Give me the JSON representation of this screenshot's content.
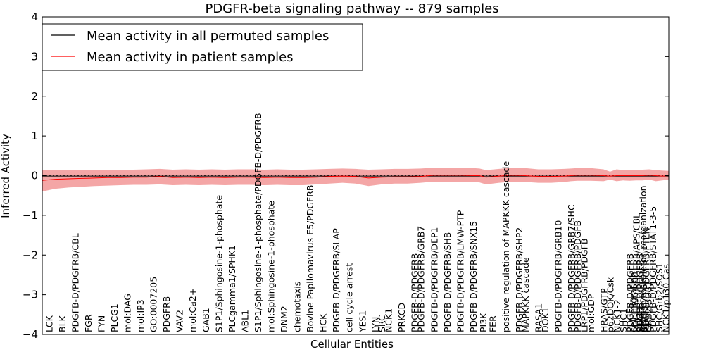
{
  "chart_data": {
    "type": "line",
    "title": "PDGFR-beta signaling pathway -- 879 samples",
    "xlabel": "Cellular Entities",
    "ylabel": "Inferred Activity",
    "ylim": [
      -4,
      4
    ],
    "yticks": [
      -4,
      -3,
      -2,
      -1,
      0,
      1,
      2,
      3,
      4
    ],
    "xlim": [
      0,
      96
    ],
    "grid": false,
    "legend_position": "top-left",
    "legend": [
      "Mean activity in all permuted samples",
      "Mean activity in patient samples"
    ],
    "categories": [
      "LCK",
      "BLK",
      "PDGFB-D/PDGFRB/CBL",
      "FGR",
      "FYN",
      "PLCG1",
      "mol:DAG",
      "mol:IP3",
      "GO:0007205",
      "PDGFRB",
      "VAV2",
      "mol:Ca2+",
      "GAB1",
      "S1P1/Sphingosine-1-phosphate",
      "PLCgamma1/SPHK1",
      "ABL1",
      "S1P1/Sphingosine-1-phosphate/PDGFB-D/PDGFRB",
      "mol:Sphingosine-1-phosphate",
      "DNM2",
      "chemotaxis",
      "Bovine Papilomavirus E5/PDGFRB",
      "HCK",
      "PDGFB-D/PDGFRB/SLAP",
      "cell cycle arrest",
      "YES1",
      "LYN",
      "SRC",
      "NCK1",
      "PRKCD",
      "PDGFB-D/PDGFRB",
      "PDGFB-D/PDGFRB/GRB7",
      "PDGFB-D/PDGFRB/DEP1",
      "PDGFB-D/PDGFRB/SHB",
      "PDGFB-D/PDGFRB/LMW-PTP",
      "PDGFB-D/PDGFRB/SNX15",
      "PI3K",
      "FER",
      "positive regulation of MAPKKK cascade",
      "PDGFB-D/PDGFRB/SHP2",
      "MAPKKK cascade",
      "RASA1",
      "DOK1",
      "PDGFB-D/PDGFRB/GRB10",
      "PDGFB-D/PDGFRB/GRB7/SHC",
      "PDGFB-D/PDGFRB/PDGFB",
      "LRP1/PDGFRB/PDGFB",
      "mol:GDP",
      "HRAS/GTP",
      "p62DOK/Csk",
      "NCK1-2",
      "SHC1",
      "PDGFB-D/PDGFRB",
      "PDGFB-D/PDGFRB/APS/CBL",
      "cell migration",
      "PDGFB-D/PDGFRB",
      "actin cytoskeleton reorganization",
      "STAT5",
      "PDGFB-D/PDGFRB/PTEN",
      "STAT1",
      "STAT3",
      "GRB2/SOS1",
      "PDGFB-D/PDGFRB/STAT1-3-5",
      "SHC/Grb2/SOS1",
      "NCK1/p130 Cas"
    ],
    "category_positions": [
      1,
      3,
      5,
      7,
      9,
      11,
      13,
      15,
      17,
      19,
      21,
      23,
      25,
      27,
      29,
      31,
      33,
      35,
      37,
      39,
      41,
      43,
      45,
      47,
      49,
      51,
      52,
      53,
      55,
      57,
      58,
      60,
      62,
      64,
      66,
      67.5,
      69,
      71,
      73,
      74,
      76,
      77,
      79,
      81,
      82,
      83,
      84,
      86,
      87,
      88,
      89,
      90,
      91,
      90.5,
      91.5,
      92,
      91.5,
      92.5,
      91.5,
      92.2,
      92.8,
      93.5,
      94.5,
      95.5
    ],
    "x": [
      0,
      2,
      4,
      6,
      8,
      10,
      12,
      14,
      16,
      18,
      20,
      22,
      24,
      26,
      28,
      30,
      32,
      34,
      36,
      38,
      40,
      42,
      44,
      46,
      48,
      50,
      52,
      54,
      56,
      58,
      60,
      62,
      64,
      66,
      67,
      68,
      70,
      72,
      74,
      76,
      78,
      80,
      81,
      82,
      84,
      86,
      87,
      88,
      89,
      90,
      91,
      92,
      93,
      94,
      95,
      96
    ],
    "series": [
      {
        "name": "Mean activity in all permuted samples",
        "color": "#000000",
        "values": [
          -0.01,
          -0.01,
          -0.01,
          -0.01,
          -0.01,
          -0.01,
          -0.01,
          -0.01,
          -0.01,
          -0.01,
          -0.01,
          -0.01,
          -0.01,
          -0.01,
          -0.01,
          -0.01,
          -0.01,
          -0.01,
          -0.01,
          -0.01,
          -0.01,
          -0.01,
          -0.01,
          -0.01,
          -0.01,
          -0.01,
          -0.01,
          -0.01,
          -0.01,
          -0.01,
          -0.01,
          -0.01,
          -0.01,
          -0.01,
          -0.01,
          -0.01,
          -0.01,
          -0.01,
          -0.01,
          -0.01,
          -0.01,
          -0.01,
          -0.01,
          -0.01,
          -0.01,
          -0.01,
          -0.01,
          -0.01,
          -0.01,
          -0.01,
          -0.01,
          -0.01,
          -0.01,
          -0.01,
          -0.01,
          -0.01
        ]
      },
      {
        "name": "Mean activity in patient samples",
        "color": "#ff0000",
        "band_color": "#f08080",
        "values": [
          -0.12,
          -0.09,
          -0.08,
          -0.07,
          -0.06,
          -0.05,
          -0.05,
          -0.04,
          -0.04,
          -0.02,
          -0.05,
          -0.04,
          -0.05,
          -0.04,
          -0.05,
          -0.04,
          -0.04,
          -0.05,
          -0.04,
          -0.05,
          -0.05,
          -0.04,
          -0.02,
          -0.01,
          -0.02,
          -0.06,
          -0.04,
          -0.03,
          -0.03,
          -0.02,
          0.01,
          0.01,
          0.01,
          0.0,
          0.0,
          -0.04,
          -0.01,
          0.01,
          0.0,
          -0.02,
          -0.02,
          -0.01,
          0.0,
          0.01,
          0.01,
          0.0,
          -0.01,
          0.0,
          0.0,
          0.0,
          0.0,
          0.0,
          0.01,
          0.0,
          -0.01,
          0.0
        ],
        "lower": [
          -0.4,
          -0.33,
          -0.3,
          -0.28,
          -0.26,
          -0.25,
          -0.24,
          -0.23,
          -0.23,
          -0.22,
          -0.24,
          -0.23,
          -0.24,
          -0.23,
          -0.24,
          -0.23,
          -0.23,
          -0.24,
          -0.23,
          -0.24,
          -0.24,
          -0.22,
          -0.2,
          -0.18,
          -0.2,
          -0.26,
          -0.22,
          -0.2,
          -0.2,
          -0.18,
          -0.15,
          -0.15,
          -0.15,
          -0.16,
          -0.17,
          -0.22,
          -0.18,
          -0.15,
          -0.16,
          -0.18,
          -0.18,
          -0.16,
          -0.14,
          -0.13,
          -0.13,
          -0.14,
          -0.1,
          -0.14,
          -0.12,
          -0.13,
          -0.12,
          -0.12,
          -0.1,
          -0.14,
          -0.12,
          -0.1
        ],
        "upper": [
          0.15,
          0.14,
          0.14,
          0.14,
          0.14,
          0.14,
          0.15,
          0.15,
          0.16,
          0.17,
          0.15,
          0.16,
          0.15,
          0.16,
          0.15,
          0.16,
          0.16,
          0.15,
          0.16,
          0.15,
          0.15,
          0.16,
          0.17,
          0.18,
          0.17,
          0.15,
          0.16,
          0.17,
          0.17,
          0.18,
          0.2,
          0.2,
          0.2,
          0.19,
          0.18,
          0.14,
          0.17,
          0.2,
          0.19,
          0.16,
          0.16,
          0.17,
          0.18,
          0.19,
          0.19,
          0.16,
          0.1,
          0.16,
          0.14,
          0.15,
          0.14,
          0.15,
          0.16,
          0.14,
          0.13,
          0.12
        ]
      }
    ]
  }
}
